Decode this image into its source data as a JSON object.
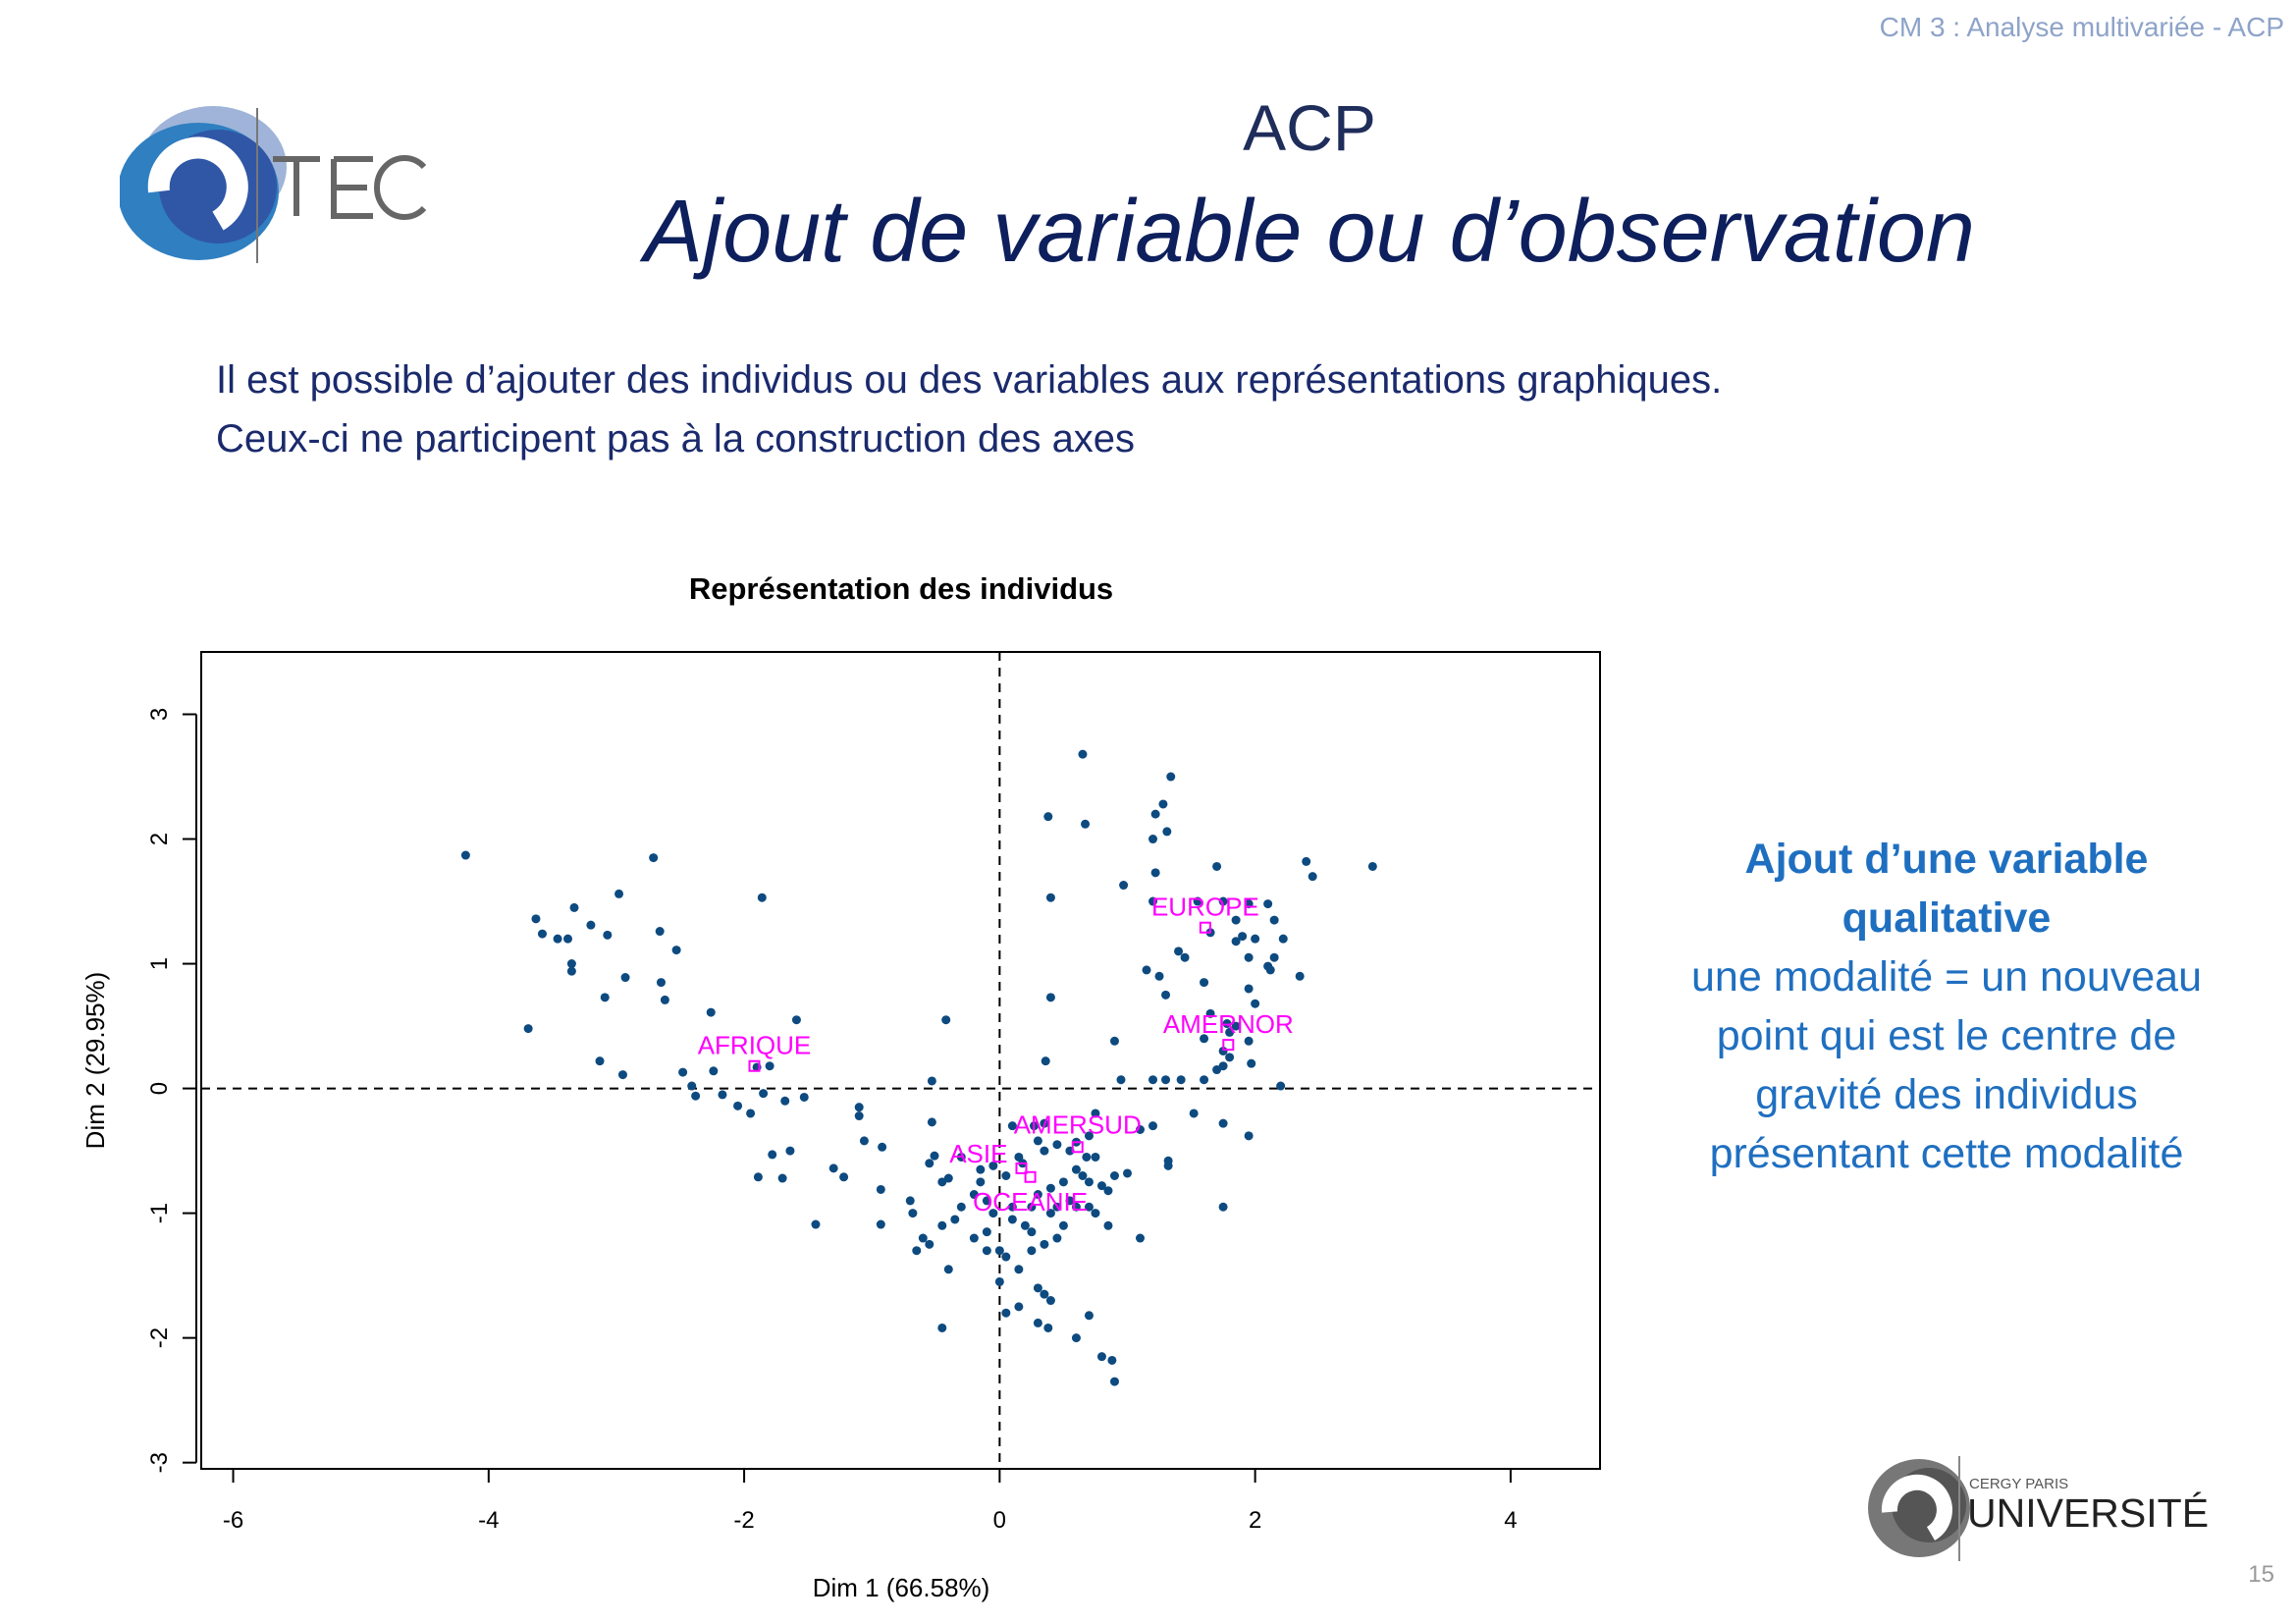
{
  "header": {
    "course": "CM 3 : Analyse multivariée - ACP",
    "page_number": "15"
  },
  "logos": {
    "cytech": "CY TECH",
    "cyu_small": "CERGY PARIS",
    "cyu_big": "UNIVERSITÉ"
  },
  "title": {
    "main": "ACP",
    "subtitle": "Ajout de variable ou d’observation"
  },
  "body": {
    "line1": "Il est possible d’ajouter des individus ou des variables aux représentations graphiques.",
    "line2": "Ceux-ci ne participent pas à la construction des axes"
  },
  "note": {
    "heading1": "Ajout d’une variable",
    "heading2": "qualitative",
    "lines": [
      "une modalité = un nouveau",
      "point qui est le centre de",
      "gravité des individus",
      "présentant cette modalité"
    ]
  },
  "colors": {
    "points": "#0d4a80",
    "supplementary": "#ff00ff",
    "note": "#1f6fc0"
  },
  "chart_data": {
    "type": "scatter",
    "title": "Représentation des individus",
    "xlabel": "Dim 1 (66.58%)",
    "ylabel": "Dim 2 (29.95%)",
    "xlim": [
      -6.25,
      4.7
    ],
    "ylim": [
      -3.05,
      3.5
    ],
    "xticks": [
      -6,
      -4,
      -2,
      0,
      2,
      4
    ],
    "yticks": [
      -3,
      -2,
      -1,
      0,
      1,
      2,
      3
    ],
    "reference_lines": {
      "x": 0,
      "y": 0,
      "style": "dashed"
    },
    "individuals": [
      [
        -4.18,
        1.87
      ],
      [
        -2.71,
        1.85
      ],
      [
        -1.86,
        1.53
      ],
      [
        -2.98,
        1.56
      ],
      [
        -3.33,
        1.45
      ],
      [
        -3.63,
        1.36
      ],
      [
        -3.58,
        1.24
      ],
      [
        -3.46,
        1.2
      ],
      [
        -3.38,
        1.2
      ],
      [
        -3.2,
        1.31
      ],
      [
        -3.07,
        1.23
      ],
      [
        -2.66,
        1.26
      ],
      [
        -3.35,
        1.0
      ],
      [
        -3.35,
        0.94
      ],
      [
        -2.93,
        0.89
      ],
      [
        -2.53,
        1.11
      ],
      [
        -2.65,
        0.85
      ],
      [
        -2.62,
        0.71
      ],
      [
        -3.09,
        0.73
      ],
      [
        -3.69,
        0.48
      ],
      [
        -2.26,
        0.61
      ],
      [
        -1.59,
        0.55
      ],
      [
        -0.42,
        0.55
      ],
      [
        -3.13,
        0.22
      ],
      [
        -2.95,
        0.11
      ],
      [
        -2.48,
        0.13
      ],
      [
        -2.24,
        0.14
      ],
      [
        -1.9,
        0.17
      ],
      [
        -1.8,
        0.18
      ],
      [
        -2.38,
        -0.06
      ],
      [
        -2.41,
        0.02
      ],
      [
        -2.17,
        -0.05
      ],
      [
        -2.05,
        -0.14
      ],
      [
        -1.95,
        -0.2
      ],
      [
        -1.85,
        -0.04
      ],
      [
        -1.68,
        -0.1
      ],
      [
        -1.53,
        -0.07
      ],
      [
        -1.1,
        -0.15
      ],
      [
        -1.1,
        -0.22
      ],
      [
        -0.53,
        0.06
      ],
      [
        -1.06,
        -0.42
      ],
      [
        -0.92,
        -0.47
      ],
      [
        -1.78,
        -0.53
      ],
      [
        -1.64,
        -0.5
      ],
      [
        -1.89,
        -0.71
      ],
      [
        -1.7,
        -0.72
      ],
      [
        -1.3,
        -0.64
      ],
      [
        -1.22,
        -0.71
      ],
      [
        -1.44,
        -1.09
      ],
      [
        -0.93,
        -0.81
      ],
      [
        -0.93,
        -1.09
      ],
      [
        -0.53,
        -0.27
      ],
      [
        -0.51,
        -0.54
      ],
      [
        -0.55,
        -0.6
      ],
      [
        -0.45,
        -0.75
      ],
      [
        -0.4,
        -0.72
      ],
      [
        -0.3,
        -0.55
      ],
      [
        -0.15,
        -0.65
      ],
      [
        -0.05,
        -0.62
      ],
      [
        0.05,
        -0.7
      ],
      [
        0.15,
        -0.55
      ],
      [
        0.18,
        -0.6
      ],
      [
        -0.7,
        -0.9
      ],
      [
        -0.68,
        -1.0
      ],
      [
        -0.6,
        -1.2
      ],
      [
        -0.55,
        -1.25
      ],
      [
        -0.65,
        -1.3
      ],
      [
        -0.45,
        -1.1
      ],
      [
        -0.35,
        -1.05
      ],
      [
        -0.3,
        -0.95
      ],
      [
        -0.2,
        -0.85
      ],
      [
        -0.1,
        -0.9
      ],
      [
        -0.1,
        -1.15
      ],
      [
        -0.05,
        -1.0
      ],
      [
        0.1,
        -0.95
      ],
      [
        0.1,
        -1.05
      ],
      [
        0.2,
        -1.1
      ],
      [
        -0.1,
        -1.3
      ],
      [
        0.0,
        -1.3
      ],
      [
        0.05,
        -1.35
      ],
      [
        -0.4,
        -1.45
      ],
      [
        0.15,
        -1.45
      ],
      [
        0.25,
        -1.3
      ],
      [
        0.35,
        -1.25
      ],
      [
        0.4,
        -1.0
      ],
      [
        0.45,
        -0.95
      ],
      [
        0.5,
        -1.1
      ],
      [
        0.45,
        -1.2
      ],
      [
        0.25,
        -0.95
      ],
      [
        0.25,
        -1.15
      ],
      [
        0.3,
        -0.85
      ],
      [
        0.4,
        -0.8
      ],
      [
        0.5,
        -0.75
      ],
      [
        0.55,
        -0.9
      ],
      [
        0.6,
        -0.95
      ],
      [
        0.7,
        -0.95
      ],
      [
        0.75,
        -1.0
      ],
      [
        0.6,
        -0.65
      ],
      [
        0.65,
        -0.7
      ],
      [
        0.7,
        -0.75
      ],
      [
        0.8,
        -0.78
      ],
      [
        0.85,
        -0.82
      ],
      [
        0.75,
        -0.55
      ],
      [
        0.68,
        -0.55
      ],
      [
        0.55,
        -0.5
      ],
      [
        0.45,
        -0.45
      ],
      [
        0.35,
        -0.5
      ],
      [
        0.3,
        -0.42
      ],
      [
        0.85,
        -1.1
      ],
      [
        1.1,
        -1.2
      ],
      [
        0.3,
        -1.6
      ],
      [
        0.35,
        -1.65
      ],
      [
        0.4,
        -1.7
      ],
      [
        0.15,
        -1.75
      ],
      [
        0.05,
        -1.8
      ],
      [
        0.0,
        -1.55
      ],
      [
        -0.45,
        -1.92
      ],
      [
        0.3,
        -1.88
      ],
      [
        0.38,
        -1.92
      ],
      [
        0.6,
        -2.0
      ],
      [
        0.7,
        -1.82
      ],
      [
        0.8,
        -2.15
      ],
      [
        0.88,
        -2.18
      ],
      [
        0.9,
        -2.35
      ],
      [
        -0.2,
        -1.2
      ],
      [
        -0.15,
        -0.75
      ],
      [
        0.1,
        -0.3
      ],
      [
        0.27,
        -0.3
      ],
      [
        0.35,
        -0.28
      ],
      [
        0.6,
        -0.43
      ],
      [
        0.7,
        -0.38
      ],
      [
        0.75,
        -0.2
      ],
      [
        0.9,
        -0.7
      ],
      [
        1.0,
        -0.68
      ],
      [
        1.1,
        -0.33
      ],
      [
        1.2,
        -0.3
      ],
      [
        1.32,
        -0.58
      ],
      [
        1.32,
        -0.62
      ],
      [
        1.52,
        -0.2
      ],
      [
        1.75,
        -0.28
      ],
      [
        1.95,
        -0.38
      ],
      [
        1.75,
        -0.95
      ],
      [
        0.65,
        2.68
      ],
      [
        1.34,
        2.5
      ],
      [
        1.28,
        2.28
      ],
      [
        1.22,
        2.2
      ],
      [
        1.31,
        2.06
      ],
      [
        1.2,
        2.0
      ],
      [
        0.38,
        2.18
      ],
      [
        0.67,
        2.12
      ],
      [
        1.7,
        1.78
      ],
      [
        2.4,
        1.82
      ],
      [
        2.45,
        1.7
      ],
      [
        2.92,
        1.78
      ],
      [
        1.22,
        1.73
      ],
      [
        0.97,
        1.63
      ],
      [
        0.4,
        1.53
      ],
      [
        1.2,
        1.5
      ],
      [
        1.55,
        1.5
      ],
      [
        1.75,
        1.5
      ],
      [
        1.95,
        1.48
      ],
      [
        2.1,
        1.48
      ],
      [
        2.15,
        1.35
      ],
      [
        1.85,
        1.35
      ],
      [
        2.0,
        1.2
      ],
      [
        1.9,
        1.22
      ],
      [
        1.85,
        1.18
      ],
      [
        2.22,
        1.2
      ],
      [
        1.65,
        1.25
      ],
      [
        1.4,
        1.1
      ],
      [
        1.45,
        1.05
      ],
      [
        2.15,
        1.05
      ],
      [
        1.95,
        1.05
      ],
      [
        2.1,
        0.98
      ],
      [
        2.12,
        0.95
      ],
      [
        1.15,
        0.95
      ],
      [
        1.25,
        0.9
      ],
      [
        1.95,
        0.8
      ],
      [
        1.6,
        0.85
      ],
      [
        2.35,
        0.9
      ],
      [
        1.3,
        0.75
      ],
      [
        2.0,
        0.68
      ],
      [
        1.65,
        0.6
      ],
      [
        1.78,
        0.52
      ],
      [
        1.85,
        0.5
      ],
      [
        1.8,
        0.45
      ],
      [
        0.4,
        0.73
      ],
      [
        0.9,
        0.38
      ],
      [
        1.6,
        0.4
      ],
      [
        1.75,
        0.3
      ],
      [
        1.8,
        0.25
      ],
      [
        1.7,
        0.15
      ],
      [
        1.75,
        0.18
      ],
      [
        1.97,
        0.2
      ],
      [
        1.95,
        0.38
      ],
      [
        0.36,
        0.22
      ],
      [
        1.2,
        0.07
      ],
      [
        1.3,
        0.07
      ],
      [
        1.42,
        0.07
      ],
      [
        1.6,
        0.07
      ],
      [
        0.95,
        0.07
      ],
      [
        2.2,
        0.02
      ]
    ],
    "supplementary": [
      {
        "label": "AFRIQUE",
        "x": -1.92,
        "y": 0.18
      },
      {
        "label": "EUROPE",
        "x": 1.61,
        "y": 1.29
      },
      {
        "label": "AMERNOR",
        "x": 1.79,
        "y": 0.35
      },
      {
        "label": "AMERSUD",
        "x": 0.61,
        "y": -0.47
      },
      {
        "label": "ASIE",
        "x": 0.17,
        "y": -0.64
      },
      {
        "label": "OCEANIE",
        "x": 0.24,
        "y": -0.71
      }
    ]
  }
}
